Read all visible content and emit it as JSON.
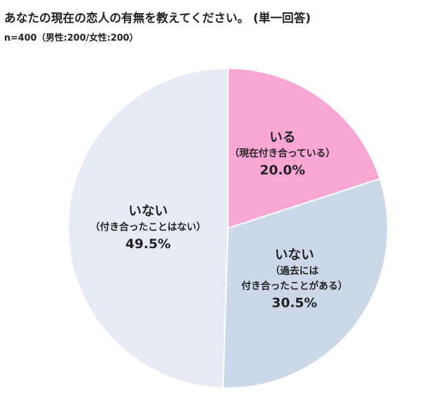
{
  "header": {
    "title": "あなたの現在の恋人の有無を教えてください。 (単一回答)",
    "subtitle": "n=400（男性:200/女性:200）"
  },
  "chart_data": {
    "type": "pie",
    "title": "あなたの現在の恋人の有無を教えてください。 (単一回答)",
    "subtitle": "n=400（男性:200/女性:200）",
    "unit": "%",
    "slices": [
      {
        "label": "いる",
        "sublabel": [
          "（現在付き合っている）"
        ],
        "value": 20.0,
        "display": "20.0%",
        "color": "#f9a6d5"
      },
      {
        "label": "いない",
        "sublabel": [
          "（過去には",
          "付き合ったことがある）"
        ],
        "value": 30.5,
        "display": "30.5%",
        "color": "#ccd7e7"
      },
      {
        "label": "いない",
        "sublabel": [
          "（付き合ったことはない）"
        ],
        "value": 49.5,
        "display": "49.5%",
        "color": "#e5eaf4"
      }
    ],
    "start_angle": "12 o'clock",
    "direction": "clockwise",
    "legend": "none",
    "labels": "inside slices"
  }
}
